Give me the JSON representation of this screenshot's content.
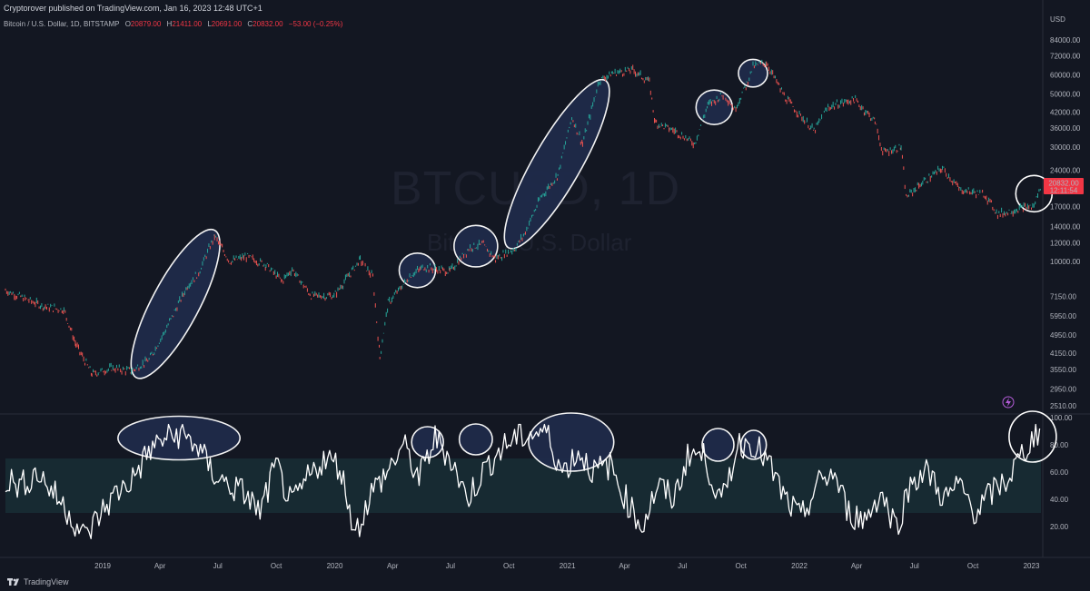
{
  "header": {
    "publisher": "Cryptorover published on TradingView.com, Jan 16, 2023 12:48 UTC+1"
  },
  "symbol_bar": {
    "name": "Bitcoin / U.S. Dollar, 1D, BITSTAMP",
    "o_label": "O",
    "o_value": "20879.00",
    "h_label": "H",
    "h_value": "21411.00",
    "l_label": "L",
    "l_value": "20691.00",
    "c_label": "C",
    "c_value": "20832.00",
    "change": "−53.00 (−0.25%)"
  },
  "watermark": {
    "ticker": "BTCUSD, 1D",
    "name": "Bitcoin / U.S. Dollar"
  },
  "price_axis": {
    "currency": "USD",
    "ticks": [
      "84000.00",
      "72000.00",
      "60000.00",
      "50000.00",
      "42000.00",
      "36000.00",
      "30000.00",
      "24000.00",
      "17000.00",
      "14000.00",
      "12000.00",
      "10000.00",
      "7150.00",
      "5950.00",
      "4950.00",
      "4150.00",
      "3550.00",
      "2950.00",
      "2510.00"
    ],
    "last_price": "20832.00",
    "countdown": "12:11:54"
  },
  "indicator_axis": {
    "ticks": [
      "100.00",
      "80.00",
      "60.00",
      "40.00",
      "20.00"
    ]
  },
  "time_axis": {
    "labels": [
      "2019",
      "Apr",
      "Jul",
      "Oct",
      "2020",
      "Apr",
      "Jul",
      "Oct",
      "2021",
      "Apr",
      "Jul",
      "Oct",
      "2022",
      "Apr",
      "Jul",
      "Oct",
      "2023"
    ]
  },
  "footer": {
    "brand": "TradingView"
  },
  "colors": {
    "bg": "#131722",
    "up": "#26a69a",
    "down": "#ef5350",
    "rsi": "#ffffff",
    "band": "#1c3a3f",
    "ellipse_fill": "#1f2a4a",
    "price_badge": "#f23645"
  },
  "chart_data": [
    {
      "type": "line",
      "title": "Bitcoin / U.S. Dollar, 1D, BITSTAMP",
      "ylabel": "USD",
      "yscale": "log",
      "ylim": [
        2400,
        90000
      ],
      "xlim": [
        "2018-08-01",
        "2023-01-16"
      ],
      "x": [
        "2018-08-01",
        "2018-09-01",
        "2018-10-01",
        "2018-11-01",
        "2018-11-20",
        "2018-12-15",
        "2019-01-15",
        "2019-02-15",
        "2019-03-15",
        "2019-04-10",
        "2019-05-15",
        "2019-06-01",
        "2019-06-26",
        "2019-07-20",
        "2019-08-15",
        "2019-09-15",
        "2019-10-10",
        "2019-10-26",
        "2019-11-25",
        "2019-12-31",
        "2020-02-10",
        "2020-03-01",
        "2020-03-12",
        "2020-03-25",
        "2020-04-30",
        "2020-05-20",
        "2020-06-30",
        "2020-08-01",
        "2020-08-20",
        "2020-09-10",
        "2020-10-10",
        "2020-10-25",
        "2020-11-20",
        "2020-12-17",
        "2021-01-08",
        "2021-01-25",
        "2021-02-20",
        "2021-03-13",
        "2021-04-14",
        "2021-05-10",
        "2021-05-19",
        "2021-06-20",
        "2021-07-20",
        "2021-08-10",
        "2021-09-05",
        "2021-09-21",
        "2021-10-10",
        "2021-10-20",
        "2021-11-10",
        "2021-12-10",
        "2022-01-24",
        "2022-02-15",
        "2022-03-28",
        "2022-04-30",
        "2022-05-12",
        "2022-06-10",
        "2022-06-18",
        "2022-07-10",
        "2022-08-14",
        "2022-09-10",
        "2022-10-20",
        "2022-11-09",
        "2022-11-21",
        "2022-12-20",
        "2023-01-05",
        "2023-01-16"
      ],
      "series": [
        {
          "values": [
            7600,
            7000,
            6500,
            6300,
            4500,
            3400,
            3600,
            3500,
            3900,
            5200,
            8000,
            9000,
            12800,
            10000,
            10500,
            9700,
            8300,
            9300,
            7200,
            7200,
            10200,
            8600,
            4000,
            6700,
            8800,
            9500,
            9100,
            11500,
            11800,
            10300,
            11300,
            13000,
            18500,
            23000,
            40000,
            31000,
            57000,
            61000,
            63000,
            56000,
            38000,
            35000,
            31000,
            45000,
            50000,
            43000,
            55000,
            65000,
            67500,
            48000,
            35000,
            44000,
            47500,
            38500,
            28500,
            30000,
            18500,
            21000,
            24500,
            20000,
            19000,
            15800,
            16000,
            16800,
            17000,
            20832
          ]
        }
      ]
    },
    {
      "type": "line",
      "ylim": [
        0,
        100
      ],
      "band": [
        30,
        70
      ],
      "x_range": [
        "2018-08-01",
        "2023-01-16"
      ],
      "series": [
        {
          "values": [
            55,
            50,
            60,
            45,
            30,
            12,
            30,
            45,
            55,
            75,
            85,
            88,
            80,
            60,
            50,
            45,
            30,
            65,
            35,
            55,
            70,
            65,
            15,
            45,
            60,
            80,
            55,
            85,
            70,
            40,
            60,
            75,
            85,
            88,
            90,
            60,
            75,
            60,
            65,
            40,
            20,
            50,
            40,
            75,
            70,
            35,
            80,
            82,
            65,
            40,
            25,
            50,
            60,
            30,
            25,
            45,
            20,
            55,
            60,
            40,
            50,
            30,
            45,
            55,
            75,
            92
          ]
        }
      ]
    }
  ],
  "annotations": {
    "ellipse_count": 14
  }
}
